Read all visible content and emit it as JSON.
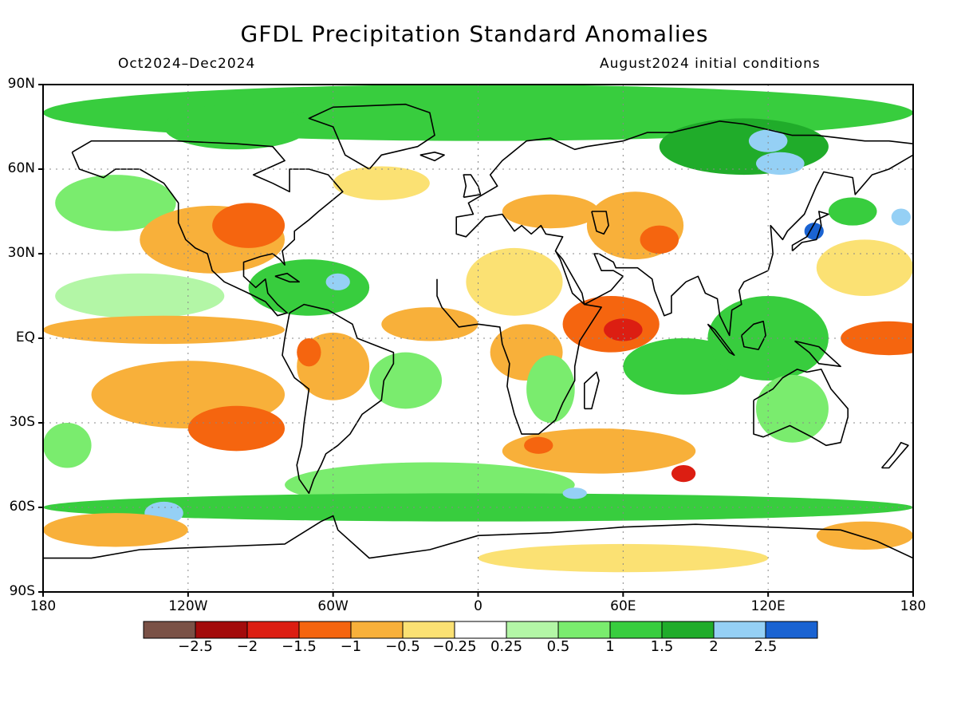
{
  "header": {
    "title": "GFDL Precipitation Standard Anomalies",
    "period": "Oct2024–Dec2024",
    "init": "August2024 initial conditions"
  },
  "axes": {
    "y_ticks": [
      "90N",
      "60N",
      "30N",
      "EQ",
      "30S",
      "60S",
      "90S"
    ],
    "x_ticks": [
      "180",
      "120W",
      "60W",
      "0",
      "60E",
      "120E",
      "180"
    ]
  },
  "colorbar": {
    "colors": [
      "#7a5146",
      "#a30b0b",
      "#dc1e12",
      "#f5650f",
      "#f8b03a",
      "#fbe173",
      "#ffffff",
      "#b3f6a6",
      "#7aec6e",
      "#38cd3e",
      "#20ac2a",
      "#95d0f5",
      "#1a63d2"
    ],
    "labels": [
      "−2.5",
      "−2",
      "−1.5",
      "−1",
      "−0.5",
      "−0.25",
      "0.25",
      "0.5",
      "1",
      "1.5",
      "2",
      "2.5"
    ]
  },
  "chart_data": {
    "type": "heatmap",
    "title": "GFDL Precipitation Standard Anomalies",
    "xlim": [
      -180,
      180
    ],
    "ylim": [
      -90,
      90
    ],
    "levels": [
      -2.5,
      -2,
      -1.5,
      -1,
      -0.5,
      -0.25,
      0.25,
      0.5,
      1,
      1.5,
      2,
      2.5
    ],
    "anomaly_regions": [
      {
        "lon": 0,
        "lat": 80,
        "rx": 180,
        "ry": 10,
        "value": 1.2
      },
      {
        "lon": -100,
        "lat": 75,
        "rx": 30,
        "ry": 8,
        "value": 1.0
      },
      {
        "lon": 110,
        "lat": 68,
        "rx": 35,
        "ry": 10,
        "value": 1.7
      },
      {
        "lon": 125,
        "lat": 62,
        "rx": 10,
        "ry": 4,
        "value": 2.2
      },
      {
        "lon": 120,
        "lat": 70,
        "rx": 8,
        "ry": 4,
        "value": 2.2
      },
      {
        "lon": -150,
        "lat": 48,
        "rx": 25,
        "ry": 10,
        "value": 0.6
      },
      {
        "lon": -110,
        "lat": 35,
        "rx": 30,
        "ry": 12,
        "value": -0.8
      },
      {
        "lon": -95,
        "lat": 40,
        "rx": 15,
        "ry": 8,
        "value": -1.2
      },
      {
        "lon": -70,
        "lat": 18,
        "rx": 25,
        "ry": 10,
        "value": 1.2
      },
      {
        "lon": -58,
        "lat": 20,
        "rx": 5,
        "ry": 3,
        "value": 2.2
      },
      {
        "lon": -140,
        "lat": 15,
        "rx": 35,
        "ry": 8,
        "value": 0.4
      },
      {
        "lon": -130,
        "lat": 3,
        "rx": 50,
        "ry": 5,
        "value": -0.7
      },
      {
        "lon": -120,
        "lat": -20,
        "rx": 40,
        "ry": 12,
        "value": -0.8
      },
      {
        "lon": -100,
        "lat": -32,
        "rx": 20,
        "ry": 8,
        "value": -1.3
      },
      {
        "lon": -60,
        "lat": -10,
        "rx": 15,
        "ry": 12,
        "value": -0.8
      },
      {
        "lon": -70,
        "lat": -5,
        "rx": 5,
        "ry": 5,
        "value": -1.3
      },
      {
        "lon": -30,
        "lat": -15,
        "rx": 15,
        "ry": 10,
        "value": 0.8
      },
      {
        "lon": -20,
        "lat": 5,
        "rx": 20,
        "ry": 6,
        "value": -0.6
      },
      {
        "lon": 15,
        "lat": 20,
        "rx": 20,
        "ry": 12,
        "value": -0.4
      },
      {
        "lon": 20,
        "lat": -5,
        "rx": 15,
        "ry": 10,
        "value": -0.7
      },
      {
        "lon": 30,
        "lat": -18,
        "rx": 10,
        "ry": 12,
        "value": 0.8
      },
      {
        "lon": 55,
        "lat": 5,
        "rx": 20,
        "ry": 10,
        "value": -1.1
      },
      {
        "lon": 60,
        "lat": 3,
        "rx": 8,
        "ry": 4,
        "value": -1.6
      },
      {
        "lon": 65,
        "lat": 40,
        "rx": 20,
        "ry": 12,
        "value": -0.7
      },
      {
        "lon": 75,
        "lat": 35,
        "rx": 8,
        "ry": 5,
        "value": -1.2
      },
      {
        "lon": 85,
        "lat": -10,
        "rx": 25,
        "ry": 10,
        "value": 1.0
      },
      {
        "lon": 120,
        "lat": 0,
        "rx": 25,
        "ry": 15,
        "value": 1.1
      },
      {
        "lon": 130,
        "lat": -25,
        "rx": 15,
        "ry": 12,
        "value": 0.8
      },
      {
        "lon": 170,
        "lat": 0,
        "rx": 20,
        "ry": 6,
        "value": -1.1
      },
      {
        "lon": 160,
        "lat": 25,
        "rx": 20,
        "ry": 10,
        "value": -0.5
      },
      {
        "lon": 155,
        "lat": 45,
        "rx": 10,
        "ry": 5,
        "value": 1.2
      },
      {
        "lon": 175,
        "lat": 43,
        "rx": 4,
        "ry": 3,
        "value": 2.2
      },
      {
        "lon": 139,
        "lat": 38,
        "rx": 4,
        "ry": 3,
        "value": 2.6
      },
      {
        "lon": 50,
        "lat": -40,
        "rx": 40,
        "ry": 8,
        "value": -0.8
      },
      {
        "lon": 85,
        "lat": -48,
        "rx": 5,
        "ry": 3,
        "value": -1.8
      },
      {
        "lon": 25,
        "lat": -38,
        "rx": 6,
        "ry": 3,
        "value": -1.5
      },
      {
        "lon": -20,
        "lat": -52,
        "rx": 60,
        "ry": 8,
        "value": 0.8
      },
      {
        "lon": 0,
        "lat": -60,
        "rx": 180,
        "ry": 5,
        "value": 1.0
      },
      {
        "lon": -130,
        "lat": -62,
        "rx": 8,
        "ry": 4,
        "value": 2.3
      },
      {
        "lon": -150,
        "lat": -68,
        "rx": 30,
        "ry": 6,
        "value": -0.6
      },
      {
        "lon": 160,
        "lat": -70,
        "rx": 20,
        "ry": 5,
        "value": -0.6
      },
      {
        "lon": 60,
        "lat": -78,
        "rx": 60,
        "ry": 5,
        "value": -0.3
      },
      {
        "lon": 40,
        "lat": -55,
        "rx": 5,
        "ry": 2,
        "value": 2.2
      },
      {
        "lon": -40,
        "lat": 55,
        "rx": 20,
        "ry": 6,
        "value": -0.5
      },
      {
        "lon": 30,
        "lat": 45,
        "rx": 20,
        "ry": 6,
        "value": -0.6
      },
      {
        "lon": -170,
        "lat": -38,
        "rx": 10,
        "ry": 8,
        "value": 0.7
      }
    ]
  }
}
